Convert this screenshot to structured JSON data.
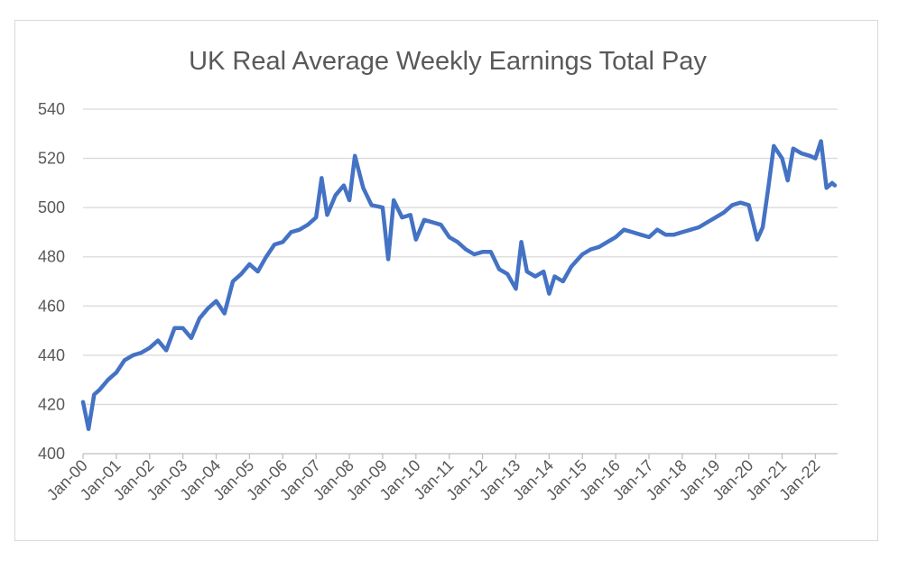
{
  "chart_data": {
    "type": "line",
    "title": "UK Real Average Weekly Earnings Total Pay",
    "xlabel": "",
    "ylabel": "",
    "ylim": [
      400,
      540
    ],
    "yticks": [
      400,
      420,
      440,
      460,
      480,
      500,
      520,
      540
    ],
    "xticks": [
      "Jan-00",
      "Jan-01",
      "Jan-02",
      "Jan-03",
      "Jan-04",
      "Jan-05",
      "Jan-06",
      "Jan-07",
      "Jan-08",
      "Jan-09",
      "Jan-10",
      "Jan-11",
      "Jan-12",
      "Jan-13",
      "Jan-14",
      "Jan-15",
      "Jan-16",
      "Jan-17",
      "Jan-18",
      "Jan-19",
      "Jan-20",
      "Jan-21",
      "Jan-22"
    ],
    "grid": true,
    "legend": "none",
    "line_color": "#4472c4",
    "series": [
      {
        "x": [
          "Jan-00",
          "Mar-00",
          "May-00",
          "Jul-00",
          "Oct-00",
          "Jan-01",
          "Apr-01",
          "Jul-01",
          "Oct-01",
          "Jan-02",
          "Apr-02",
          "Jul-02",
          "Oct-02",
          "Jan-03",
          "Apr-03",
          "Jul-03",
          "Oct-03",
          "Jan-04",
          "Apr-04",
          "Jul-04",
          "Oct-04",
          "Jan-05",
          "Apr-05",
          "Jul-05",
          "Oct-05",
          "Jan-06",
          "Apr-06",
          "Jul-06",
          "Oct-06",
          "Jan-07",
          "Mar-07",
          "May-07",
          "Aug-07",
          "Nov-07",
          "Jan-08",
          "Mar-08",
          "Jun-08",
          "Sep-08",
          "Jan-09",
          "Mar-09",
          "May-09",
          "Aug-09",
          "Nov-09",
          "Jan-10",
          "Apr-10",
          "Jul-10",
          "Oct-10",
          "Jan-11",
          "Apr-11",
          "Jul-11",
          "Oct-11",
          "Jan-12",
          "Apr-12",
          "Jul-12",
          "Oct-12",
          "Jan-13",
          "Mar-13",
          "May-13",
          "Aug-13",
          "Nov-13",
          "Jan-14",
          "Mar-14",
          "Jun-14",
          "Sep-14",
          "Jan-15",
          "Apr-15",
          "Jul-15",
          "Oct-15",
          "Jan-16",
          "Apr-16",
          "Jul-16",
          "Oct-16",
          "Jan-17",
          "Apr-17",
          "Jul-17",
          "Oct-17",
          "Jan-18",
          "Apr-18",
          "Jul-18",
          "Oct-18",
          "Jan-19",
          "Apr-19",
          "Jul-19",
          "Oct-19",
          "Jan-20",
          "Apr-20",
          "Jun-20",
          "Aug-20",
          "Oct-20",
          "Jan-21",
          "Mar-21",
          "May-21",
          "Aug-21",
          "Nov-21",
          "Jan-22",
          "Mar-22",
          "May-22",
          "Jul-22",
          "Aug-22"
        ],
        "values": [
          421,
          410,
          424,
          426,
          430,
          433,
          438,
          440,
          441,
          443,
          446,
          442,
          451,
          451,
          447,
          455,
          459,
          462,
          457,
          470,
          473,
          477,
          474,
          480,
          485,
          486,
          490,
          491,
          493,
          496,
          512,
          497,
          505,
          509,
          503,
          521,
          508,
          501,
          500,
          479,
          503,
          496,
          497,
          487,
          495,
          494,
          493,
          488,
          486,
          483,
          481,
          482,
          482,
          475,
          473,
          467,
          486,
          474,
          472,
          474,
          465,
          472,
          470,
          476,
          481,
          483,
          484,
          486,
          488,
          491,
          490,
          489,
          488,
          491,
          489,
          489,
          490,
          491,
          492,
          494,
          496,
          498,
          501,
          502,
          501,
          487,
          492,
          508,
          525,
          520,
          511,
          524,
          522,
          521,
          520,
          527,
          508,
          510,
          509
        ]
      }
    ]
  }
}
